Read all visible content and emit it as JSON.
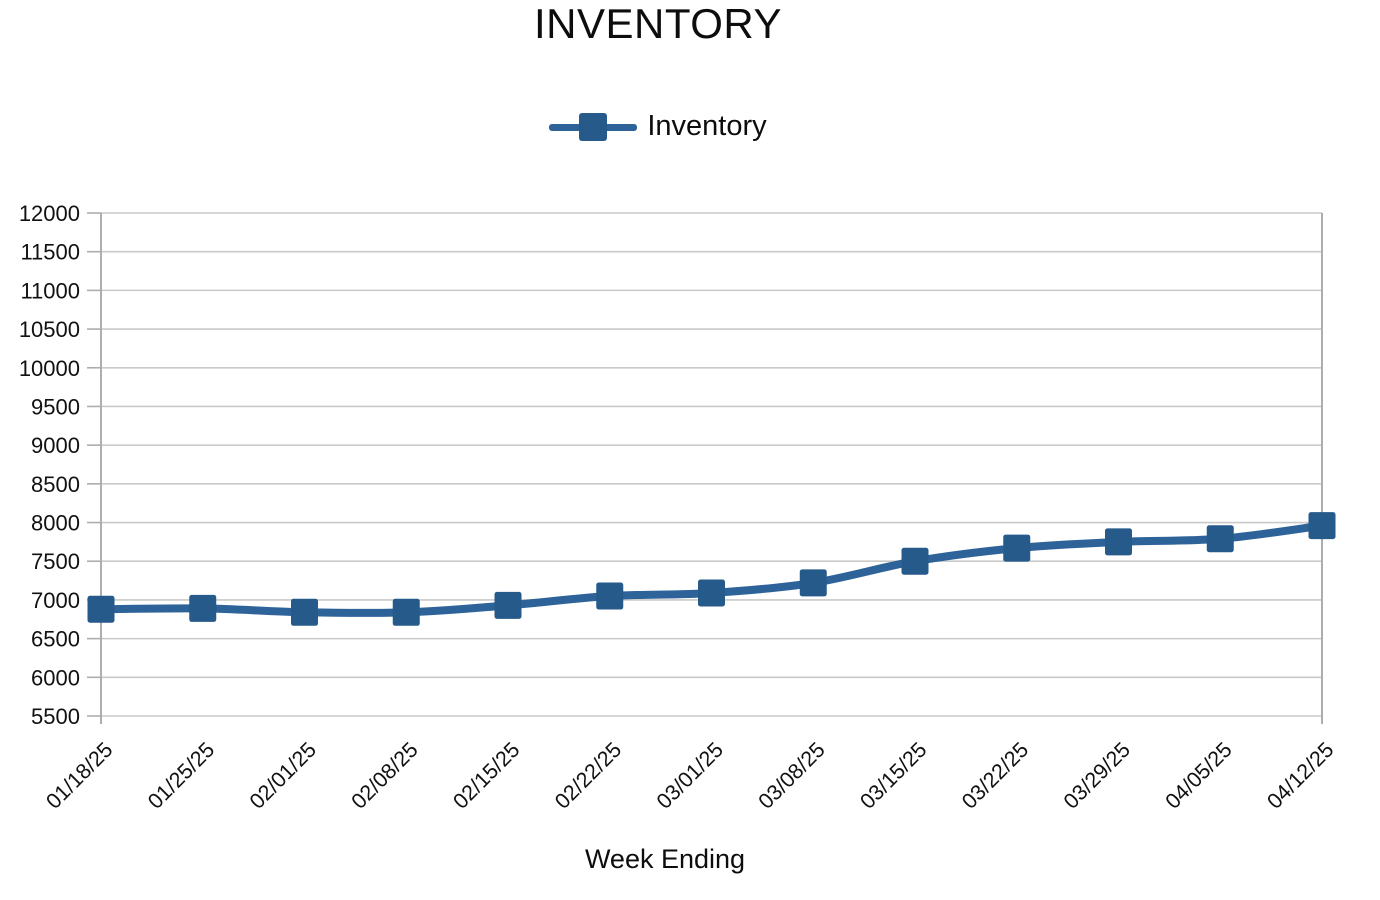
{
  "chart_data": {
    "type": "line",
    "title": "INVENTORY",
    "xlabel": "Week Ending",
    "ylabel": "",
    "categories": [
      "01/18/25",
      "01/25/25",
      "02/01/25",
      "02/08/25",
      "02/15/25",
      "02/22/25",
      "03/01/25",
      "03/08/25",
      "03/15/25",
      "03/22/25",
      "03/29/25",
      "04/05/25",
      "04/12/25"
    ],
    "series": [
      {
        "name": "Inventory",
        "values": [
          6880,
          6890,
          6840,
          6840,
          6930,
          7050,
          7090,
          7220,
          7500,
          7670,
          7750,
          7790,
          7960
        ]
      }
    ],
    "ylim": [
      5500,
      12000
    ],
    "ytick_step": 500,
    "grid": true,
    "legend_position": "top-center",
    "smooth_line": true,
    "colors": {
      "line": "#2E6399",
      "marker": "#255A8A",
      "gridline": "#C9C9C9",
      "axis": "#ADADAD",
      "text": "#111111",
      "background": "#FFFFFF"
    }
  }
}
